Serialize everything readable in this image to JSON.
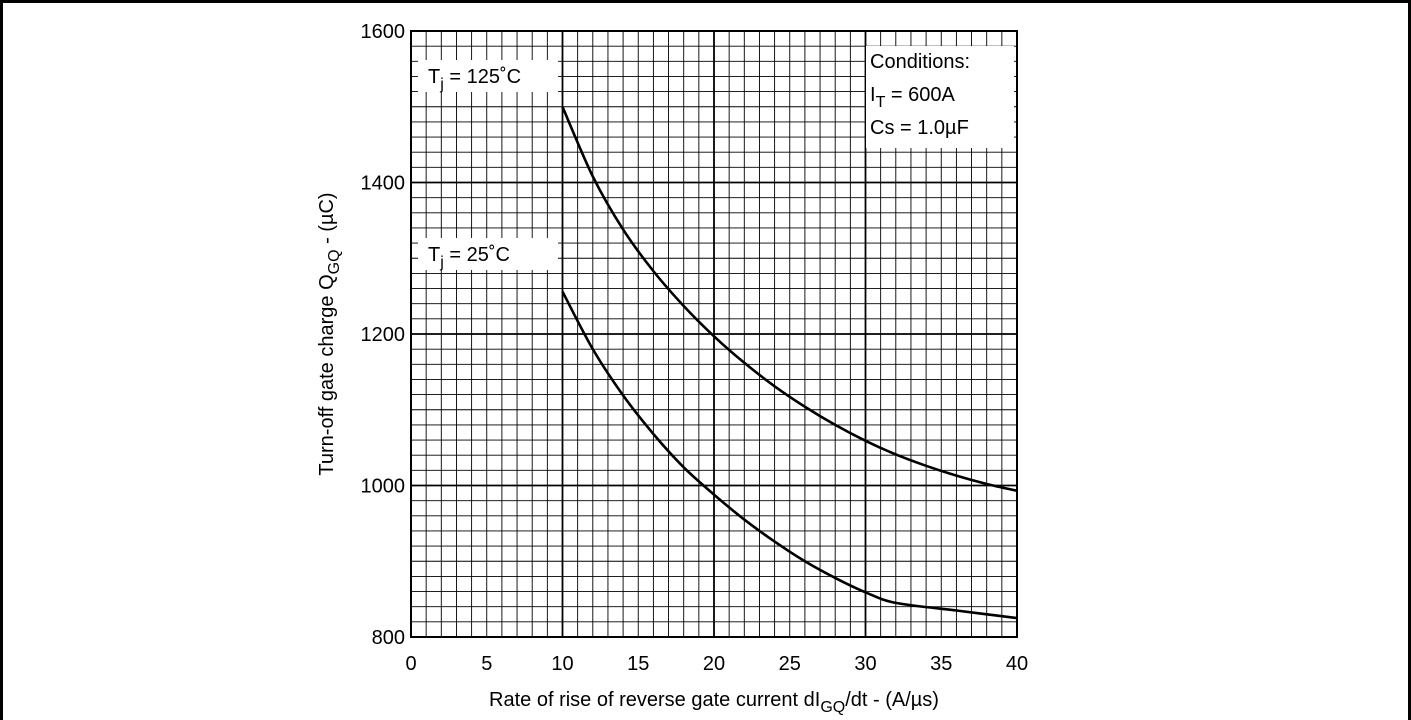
{
  "chart_data": {
    "type": "line",
    "xlabel": {
      "main": "Rate of rise of reverse gate current  dI",
      "sub": "GQ",
      "tail": "/dt - (A/µs)"
    },
    "ylabel": {
      "main": "Turn-off gate charge Q",
      "sub": "GQ",
      "tail": " - (µC)"
    },
    "xlim": [
      0,
      40
    ],
    "ylim": [
      800,
      1600
    ],
    "xticks": [
      "0",
      "5",
      "10",
      "15",
      "20",
      "25",
      "30",
      "35",
      "40"
    ],
    "yticks": [
      "800",
      "1000",
      "1200",
      "1400",
      "1600"
    ],
    "grid": true,
    "grid_minor_x_step": 1,
    "grid_minor_y_step": 20,
    "series": [
      {
        "name": "Tj = 125°C",
        "label": {
          "pre": "T",
          "sub": "j",
          "post": " = 125˚C"
        },
        "x": [
          10,
          12,
          14,
          16,
          18,
          20,
          22,
          24,
          26,
          28,
          30,
          32,
          34,
          36,
          38,
          40
        ],
        "y": [
          1500,
          1408,
          1338,
          1283,
          1237,
          1197,
          1162,
          1131,
          1104,
          1080,
          1059,
          1041,
          1026,
          1013,
          1002,
          993
        ]
      },
      {
        "name": "Tj = 25°C",
        "label": {
          "pre": "T",
          "sub": "j",
          "post": " = 25˚C"
        },
        "x": [
          10,
          12,
          14,
          16,
          18,
          20,
          22,
          24,
          26,
          28,
          30,
          32,
          34,
          36,
          38,
          40
        ],
        "y": [
          1256,
          1180,
          1119,
          1068,
          1024,
          988,
          955,
          926,
          900,
          878,
          859,
          845,
          849,
          835,
          830,
          825
        ]
      }
    ],
    "annotation": {
      "line1": "Conditions:",
      "line2": {
        "pre": "I",
        "sub": "T",
        "post": " = 600A"
      },
      "line3": "Cs = 1.0µF"
    }
  }
}
